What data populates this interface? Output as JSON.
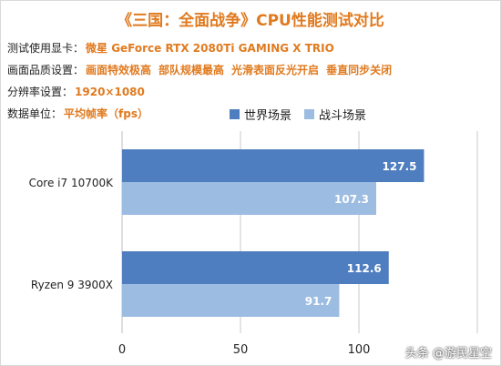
{
  "title": "《三国：全面战争》CPU性能测试对比",
  "info": [
    {
      "label": "测试使用显卡：",
      "values": [
        "微星 GeForce RTX 2080Ti GAMING X TRIO"
      ]
    },
    {
      "label": "画面品质设置：",
      "values": [
        "画面特效极高",
        "部队规模最高",
        "光滑表面反光开启",
        "垂直同步关闭"
      ]
    },
    {
      "label": "分辨率设置：",
      "values": [
        "1920×1080"
      ]
    },
    {
      "label": "数据单位：",
      "values": [
        "平均帧率（fps）"
      ]
    }
  ],
  "watermark": "头条 @游民星空",
  "colors": {
    "series1": "#4f7ec0",
    "series2": "#9dbce2",
    "accent": "#e07a1f"
  },
  "chart_data": {
    "type": "bar",
    "orientation": "horizontal",
    "categories": [
      "Core i7 10700K",
      "Ryzen 9 3900X"
    ],
    "series": [
      {
        "name": "世界场景",
        "values": [
          127.5,
          112.6
        ]
      },
      {
        "name": "战斗场景",
        "values": [
          107.3,
          91.7
        ]
      }
    ],
    "xlim": [
      0,
      150
    ],
    "xticks": [
      "0",
      "50",
      "100"
    ],
    "grid": true,
    "legend": "top"
  }
}
